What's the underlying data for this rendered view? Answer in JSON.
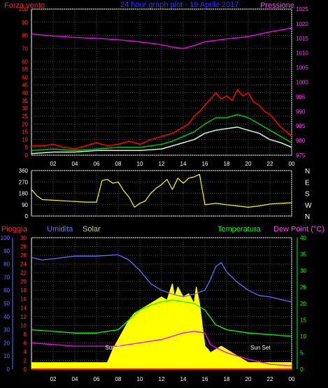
{
  "chart_data": [
    {
      "type": "line",
      "title": "24 hour graph plot - 19 Aprile 2017",
      "left_axis_label": "Forza vento",
      "right_axis_label": "Pressione",
      "x_ticks": [
        "02",
        "04",
        "06",
        "08",
        "10",
        "12",
        "14",
        "16",
        "18",
        "20",
        "22",
        "00"
      ],
      "left_ticks": [
        0,
        5,
        10,
        15,
        20,
        25,
        30,
        35,
        40,
        45,
        50,
        55,
        60,
        70,
        80,
        90,
        100
      ],
      "left_range": [
        0,
        100
      ],
      "right_ticks": [
        975,
        980,
        985,
        990,
        995,
        1000,
        1005,
        1010,
        1015,
        1020,
        1025
      ],
      "right_range": [
        975,
        1025
      ],
      "grid": true,
      "series": [
        {
          "id": "pressure",
          "color": "#ff00ff",
          "axis": "right",
          "x": [
            0,
            2,
            4,
            6,
            8,
            10,
            12,
            13,
            14,
            15,
            16,
            18,
            20,
            22,
            24
          ],
          "y": [
            1016.5,
            1015.8,
            1015.3,
            1015,
            1014.5,
            1013.8,
            1012.8,
            1012,
            1011.5,
            1012.5,
            1013.8,
            1014.8,
            1015.6,
            1017.2,
            1018.5
          ]
        },
        {
          "id": "gust",
          "color": "#ff0000",
          "axis": "left",
          "x": [
            0,
            1,
            2,
            3,
            4,
            5,
            6,
            7,
            8,
            9,
            10,
            11,
            12,
            13,
            14,
            14.5,
            15,
            15.5,
            16,
            16.5,
            17,
            17.5,
            18,
            18.5,
            19,
            19.5,
            20,
            20.5,
            21,
            21.5,
            22,
            22.5,
            23,
            23.5,
            24
          ],
          "y": [
            6,
            6,
            7,
            5,
            4,
            6,
            8,
            6,
            7,
            9,
            7,
            10,
            12,
            14,
            18,
            20,
            25,
            28,
            32,
            36,
            40,
            36,
            38,
            35,
            42,
            38,
            40,
            34,
            32,
            28,
            26,
            22,
            18,
            15,
            12
          ]
        },
        {
          "id": "avg",
          "color": "#00c000",
          "axis": "left",
          "x": [
            0,
            2,
            4,
            6,
            8,
            10,
            12,
            13,
            14,
            15,
            16,
            17,
            18,
            19,
            20,
            21,
            22,
            23,
            24
          ],
          "y": [
            3,
            4,
            3,
            4,
            5,
            5,
            7,
            9,
            12,
            15,
            20,
            24,
            24,
            26,
            24,
            20,
            16,
            12,
            8
          ]
        },
        {
          "id": "speed",
          "color": "#c8ffd8",
          "axis": "left",
          "x": [
            0,
            2,
            4,
            6,
            8,
            10,
            12,
            13,
            14,
            15,
            16,
            17,
            18,
            19,
            20,
            21,
            22,
            23,
            24
          ],
          "y": [
            1,
            2,
            2,
            3,
            3,
            3,
            4,
            6,
            8,
            10,
            14,
            16,
            17,
            18,
            16,
            14,
            10,
            8,
            5
          ]
        }
      ]
    },
    {
      "type": "line",
      "title": "Direzione vento",
      "left_ticks": [
        0,
        90,
        180,
        270,
        360
      ],
      "left_range": [
        0,
        360
      ],
      "compass_labels": [
        "N",
        "W",
        "S",
        "E",
        "N"
      ],
      "x_ticks": [
        "02",
        "04",
        "06",
        "08",
        "10",
        "12",
        "14",
        "16",
        "18",
        "20",
        "22",
        "00"
      ],
      "grid": true,
      "series": [
        {
          "id": "direction",
          "color": "#ffff00",
          "x": [
            0,
            0.5,
            1,
            2,
            3,
            4,
            5,
            6,
            6.5,
            7,
            7.5,
            8,
            8.5,
            9,
            9.5,
            10,
            10.5,
            11,
            11.5,
            12,
            12.5,
            13,
            13.5,
            14,
            14.5,
            15,
            15.5,
            16,
            17,
            18,
            19,
            20,
            21,
            22,
            23,
            24
          ],
          "y": [
            210,
            160,
            130,
            125,
            120,
            115,
            110,
            110,
            280,
            290,
            260,
            270,
            200,
            150,
            70,
            100,
            120,
            180,
            220,
            250,
            290,
            210,
            300,
            260,
            300,
            310,
            330,
            90,
            100,
            90,
            80,
            70,
            80,
            95,
            100,
            105
          ]
        }
      ]
    },
    {
      "type": "area",
      "left_axis_label_1": "Pioggia",
      "left_axis_label_2": "Umidita",
      "left_axis_label_3": "Solar",
      "right_axis_label_1": "Temperatura",
      "right_axis_label_2": "Dew Point (°C)",
      "x_ticks": [
        "02",
        "04",
        "06",
        "08",
        "10",
        "12",
        "14",
        "16",
        "18",
        "20",
        "22",
        "00"
      ],
      "rain_ticks": [
        0,
        2,
        4,
        6,
        8,
        10,
        12,
        14,
        16,
        18,
        20,
        22,
        24,
        26,
        28,
        30
      ],
      "rain_range": [
        0,
        30
      ],
      "humidity_ticks": [
        0,
        10,
        20,
        30,
        40,
        50,
        60,
        70,
        80,
        90,
        100
      ],
      "humidity_range": [
        0,
        100
      ],
      "temp_ticks": [
        0,
        5,
        10,
        15,
        20,
        25,
        30,
        35,
        40
      ],
      "temp_range": [
        0,
        40
      ],
      "annotations": [
        {
          "text": "Sun Rise",
          "x": 6.8,
          "y_temp": 6
        },
        {
          "text": "Sun Set",
          "x": 20.2,
          "y_temp": 6
        }
      ],
      "grid": true,
      "series": [
        {
          "id": "solar",
          "color": "#ffff00",
          "axis": "temp",
          "x": [
            0,
            2,
            4,
            6,
            7,
            7.5,
            8,
            8.5,
            9,
            9.5,
            10,
            10.5,
            11,
            11.5,
            12,
            12.5,
            13,
            13.2,
            13.5,
            14,
            14.5,
            15,
            15.2,
            15.5,
            16,
            16.3,
            16.5,
            17,
            17.5,
            18,
            18.5,
            19,
            19.5,
            20,
            20.5,
            21,
            22,
            23,
            24
          ],
          "y": [
            2,
            2,
            2,
            2,
            2,
            6,
            9,
            12,
            15,
            17,
            18,
            19,
            20,
            21,
            22,
            21,
            26,
            22,
            25,
            22,
            23,
            20,
            25,
            20,
            7,
            6,
            5,
            6,
            7,
            6,
            5,
            4,
            3,
            2,
            2,
            2,
            2,
            2,
            2
          ]
        },
        {
          "id": "humidity",
          "color": "#6868ff",
          "axis": "humidity",
          "x": [
            0,
            1,
            2,
            4,
            6,
            8,
            9,
            10,
            11,
            12,
            13,
            14,
            15,
            16,
            16.5,
            17,
            17.5,
            18,
            19,
            20,
            21,
            22,
            23,
            24
          ],
          "y": [
            85,
            83,
            84,
            86,
            86,
            87,
            83,
            75,
            65,
            60,
            57,
            55,
            57,
            60,
            68,
            78,
            81,
            74,
            66,
            60,
            56,
            55,
            53,
            51
          ]
        },
        {
          "id": "temperature",
          "color": "#00ff00",
          "axis": "temp",
          "x": [
            0,
            2,
            4,
            6,
            7,
            8,
            9,
            10,
            11,
            12,
            13,
            14,
            15,
            16,
            17,
            18,
            20,
            22,
            24
          ],
          "y": [
            12,
            11.5,
            11,
            11,
            11.5,
            12,
            15,
            18,
            19.5,
            20.5,
            21,
            20.5,
            20,
            18,
            13.5,
            12,
            11,
            10.5,
            10
          ]
        },
        {
          "id": "dewpoint",
          "color": "#ff00ff",
          "axis": "temp",
          "x": [
            0,
            2,
            4,
            6,
            8,
            10,
            12,
            14,
            15,
            16,
            16.5,
            17,
            18,
            20,
            22,
            24
          ],
          "y": [
            8,
            7.5,
            7,
            7,
            7,
            8,
            9,
            11,
            11.5,
            11,
            7.5,
            6.5,
            5,
            3,
            1.5,
            1
          ]
        },
        {
          "id": "rain",
          "color": "#ff0000",
          "axis": "rain",
          "x": [
            0,
            24
          ],
          "y": [
            0,
            0
          ]
        }
      ]
    }
  ]
}
